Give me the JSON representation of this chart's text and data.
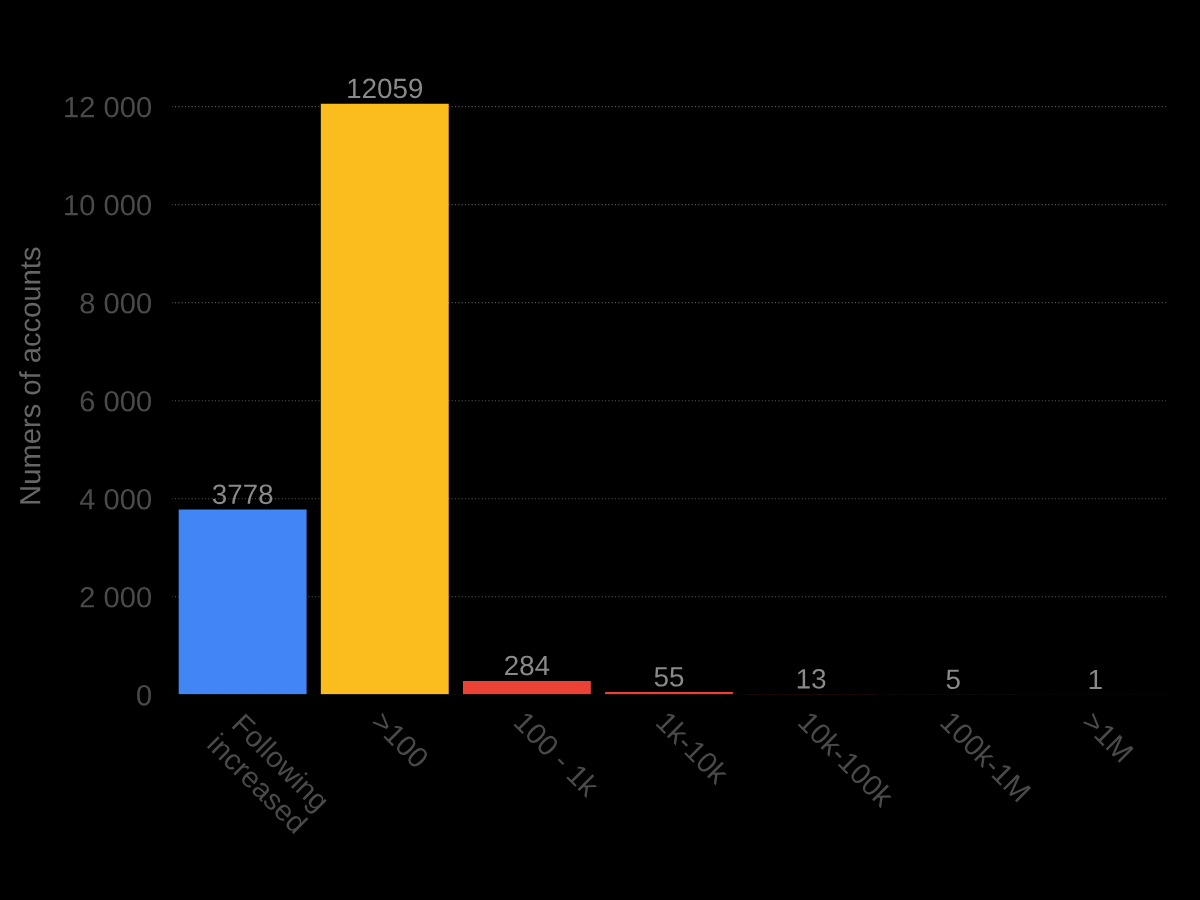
{
  "chart_data": {
    "type": "bar",
    "ylabel": "Numers of accounts",
    "categories": [
      "Following\nincreased",
      ">100",
      "100 - 1k",
      "1k-10k",
      "10k-100k",
      "100k-1M",
      ">1M"
    ],
    "values": [
      3778,
      12059,
      284,
      55,
      13,
      5,
      1
    ],
    "colors": [
      "#4285f4",
      "#fbbc1d",
      "#ea4335",
      "#ea4335",
      "#ea4335",
      "#ea4335",
      "#ea4335"
    ],
    "ylim": [
      0,
      13000
    ],
    "yticks": [
      0,
      {
        "value": 2000,
        "label": "2 000"
      },
      {
        "value": 4000,
        "label": "4 000"
      },
      {
        "value": 6000,
        "label": "6 000"
      },
      {
        "value": 8000,
        "label": "8 000"
      },
      {
        "value": 10000,
        "label": "10 000"
      },
      {
        "value": 12000,
        "label": "12 000"
      }
    ],
    "grid": "y",
    "data_labels": true
  }
}
